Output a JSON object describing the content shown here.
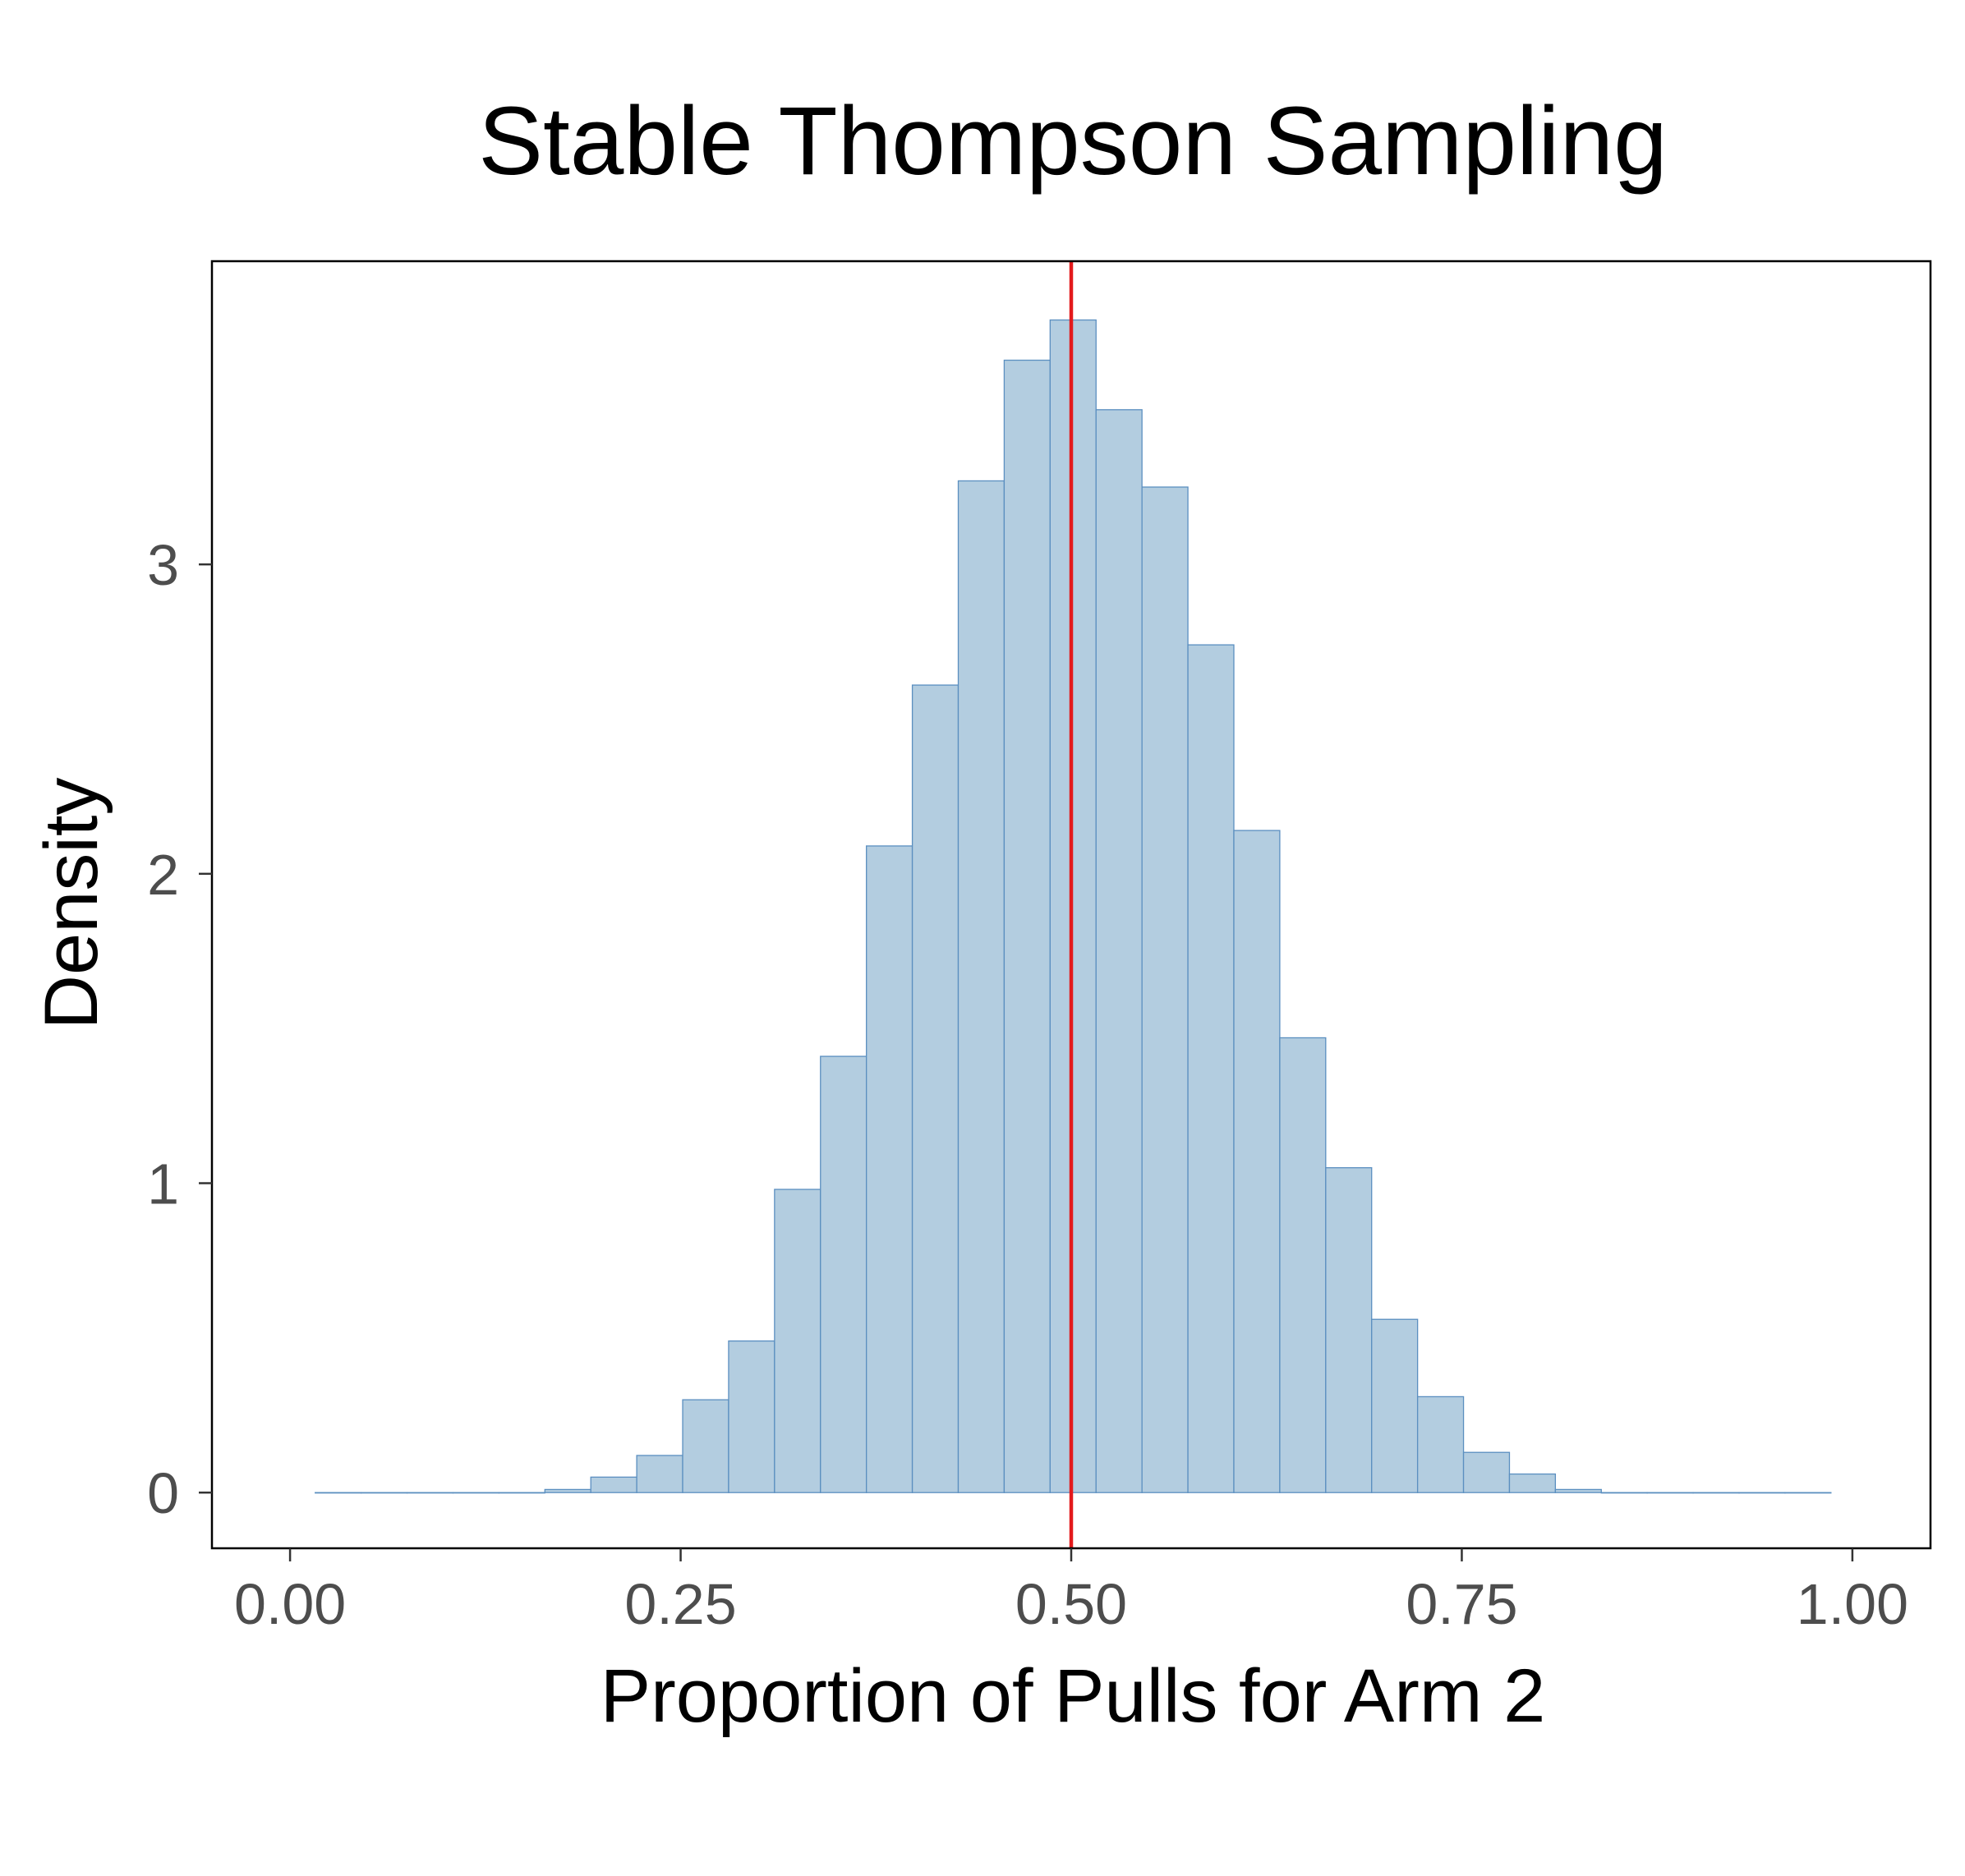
{
  "chart_data": {
    "type": "bar",
    "title": "Stable Thompson Sampling",
    "xlabel": "Proportion of Pulls for Arm 2",
    "ylabel": "Density",
    "xlim": [
      -0.05,
      1.05
    ],
    "ylim": [
      -0.18,
      3.98
    ],
    "x_ticks": [
      0.0,
      0.25,
      0.5,
      0.75,
      1.0
    ],
    "x_tick_labels": [
      "0.00",
      "0.25",
      "0.50",
      "0.75",
      "1.00"
    ],
    "y_ticks": [
      0,
      1,
      2,
      3
    ],
    "y_tick_labels": [
      "0",
      "1",
      "2",
      "3"
    ],
    "bin_edges": [
      0.0161,
      0.0455,
      0.0749,
      0.1043,
      0.1337,
      0.1631,
      0.1925,
      0.2219,
      0.2513,
      0.2807,
      0.3101,
      0.3395,
      0.3689,
      0.3983,
      0.4277,
      0.4571,
      0.4865,
      0.5159,
      0.5453,
      0.5747,
      0.6041,
      0.6335,
      0.6629,
      0.6923,
      0.7217,
      0.7511,
      0.7805,
      0.8099,
      0.8393,
      0.8687,
      0.8981,
      0.9275,
      0.9569,
      0.9863
    ],
    "values": [
      0,
      0,
      0,
      0,
      0,
      0.01,
      0.05,
      0.12,
      0.3,
      0.49,
      0.98,
      1.41,
      2.09,
      2.61,
      3.27,
      3.66,
      3.79,
      3.5,
      3.25,
      2.74,
      2.14,
      1.47,
      1.05,
      0.56,
      0.31,
      0.13,
      0.06,
      0.01,
      0,
      0,
      0,
      0,
      0
    ],
    "reference_line": {
      "x": 0.5,
      "color": "#e31a1c"
    },
    "bar_fill": "#b3cde0",
    "bar_stroke": "#5b8fc0",
    "grid": false,
    "legend": "none"
  }
}
